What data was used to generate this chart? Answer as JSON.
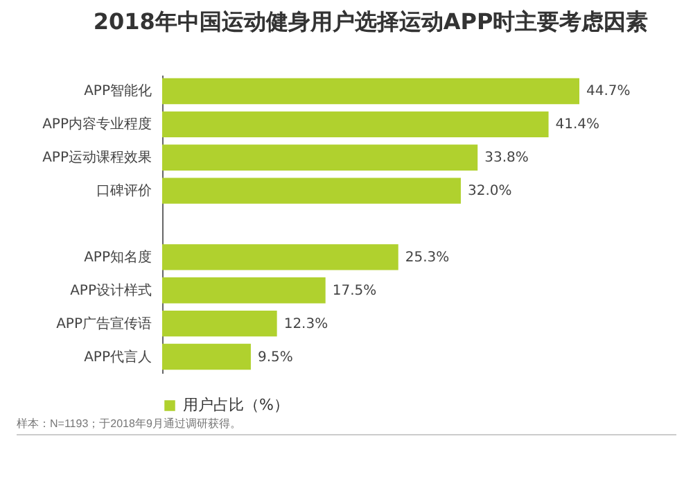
{
  "chart_data": {
    "type": "bar",
    "orientation": "horizontal",
    "title": "2018年中国运动健身用户选择运动APP时主要考虑因素",
    "categories": [
      "APP智能化",
      "APP内容专业程度",
      "APP运动课程效果",
      "口碑评价",
      null,
      "APP知名度",
      "APP设计样式",
      "APP广告宣传语",
      "APP代言人"
    ],
    "series": [
      {
        "name": "用户占比（%）",
        "color": "#b0d12e",
        "values": [
          44.7,
          41.4,
          33.8,
          32.0,
          null,
          25.3,
          17.5,
          12.3,
          9.5
        ],
        "value_labels": [
          "44.7%",
          "41.4%",
          "33.8%",
          "32.0%",
          null,
          "25.3%",
          "17.5%",
          "12.3%",
          "9.5%"
        ]
      }
    ],
    "legend": "bottom",
    "annotations": [
      "样本：N=1193；于2018年9月通过调研获得。"
    ]
  }
}
